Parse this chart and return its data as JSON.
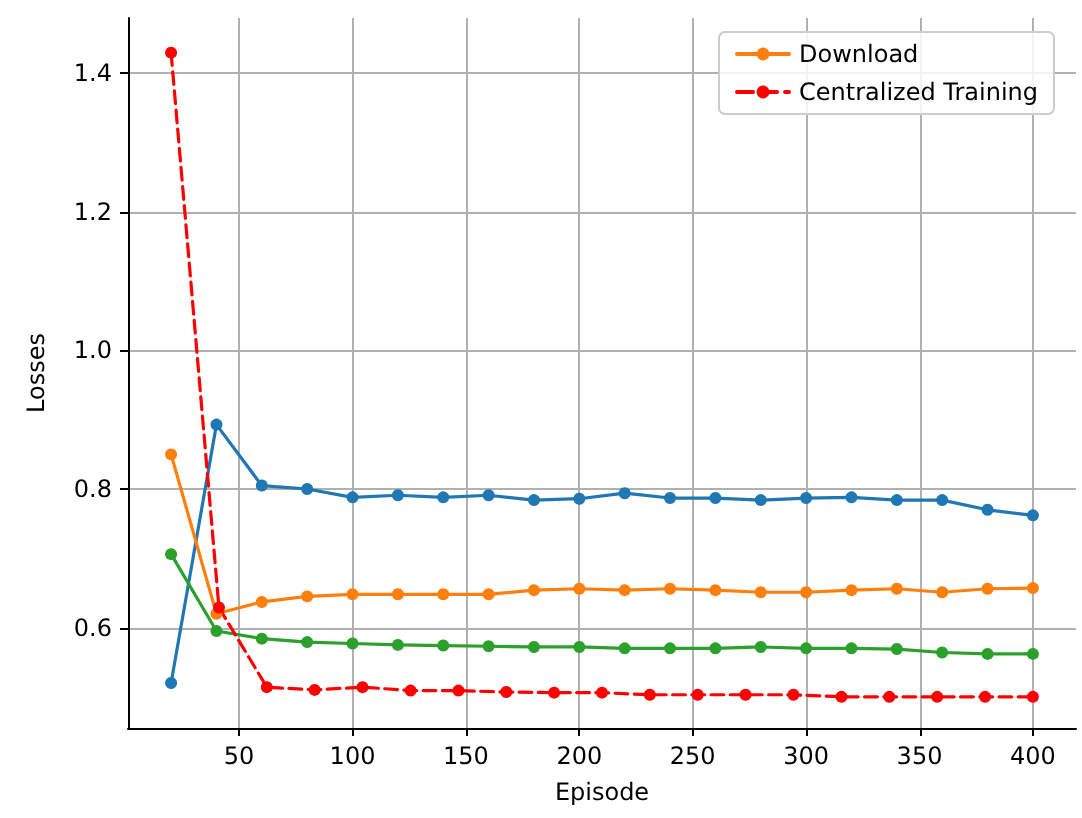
{
  "chart_data": {
    "type": "line",
    "xlabel": "Episode",
    "ylabel": "Losses",
    "xlim": [
      1,
      419
    ],
    "ylim": [
      0.455,
      1.48
    ],
    "xticks": [
      50,
      100,
      150,
      200,
      250,
      300,
      350,
      400
    ],
    "yticks": [
      0.6,
      0.8,
      {
        "value": 1,
        "label": "1.0"
      },
      1.2,
      1.4
    ],
    "grid": true,
    "legend": "top right",
    "marker": "circle",
    "series": [
      {
        "color": "#1f77b4",
        "line_style": "solid",
        "x": [
          20,
          40,
          60,
          80,
          100,
          120,
          140,
          160,
          180,
          200,
          220,
          240,
          260,
          280,
          300,
          320,
          340,
          360,
          380,
          400
        ],
        "values": [
          0.52,
          0.893,
          0.805,
          0.8,
          0.788,
          0.791,
          0.788,
          0.791,
          0.784,
          0.786,
          0.794,
          0.787,
          0.787,
          0.784,
          0.787,
          0.788,
          0.784,
          0.784,
          0.77,
          0.762
        ]
      },
      {
        "name": "Download",
        "color": "#ff7f0e",
        "line_style": "solid",
        "x": [
          20,
          40,
          60,
          80,
          100,
          120,
          140,
          160,
          180,
          200,
          220,
          240,
          260,
          280,
          300,
          320,
          340,
          360,
          380,
          400
        ],
        "values": [
          0.85,
          0.62,
          0.637,
          0.645,
          0.648,
          0.648,
          0.648,
          0.648,
          0.654,
          0.656,
          0.654,
          0.656,
          0.654,
          0.651,
          0.651,
          0.654,
          0.656,
          0.651,
          0.656,
          0.657
        ]
      },
      {
        "color": "#2ca02c",
        "line_style": "solid",
        "x": [
          20,
          40,
          60,
          80,
          100,
          120,
          140,
          160,
          180,
          200,
          220,
          240,
          260,
          280,
          300,
          320,
          340,
          360,
          380,
          400
        ],
        "values": [
          0.706,
          0.595,
          0.584,
          0.579,
          0.577,
          0.575,
          0.574,
          0.573,
          0.572,
          0.572,
          0.57,
          0.57,
          0.57,
          0.572,
          0.57,
          0.57,
          0.569,
          0.564,
          0.562,
          0.562
        ]
      },
      {
        "name": "Centralized Training",
        "color": "#ff0000",
        "line_style": "dashed",
        "x": [
          20,
          41.1,
          62.2,
          83.3,
          104.4,
          125.6,
          146.7,
          167.8,
          188.9,
          210,
          231.1,
          252.2,
          273.3,
          294.4,
          315.6,
          336.7,
          357.8,
          378.9,
          400
        ],
        "values": [
          1.43,
          0.629,
          0.514,
          0.51,
          0.514,
          0.509,
          0.509,
          0.507,
          0.506,
          0.506,
          0.503,
          0.503,
          0.503,
          0.503,
          0.5,
          0.5,
          0.5,
          0.5,
          0.5
        ]
      }
    ]
  }
}
